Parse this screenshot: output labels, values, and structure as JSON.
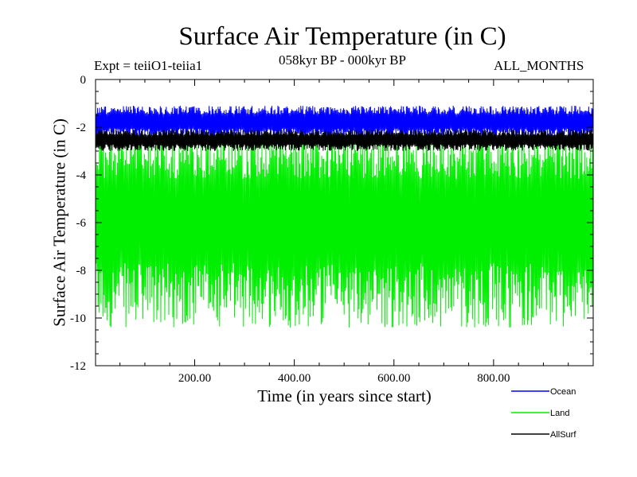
{
  "header": {
    "title": "Surface Air Temperature (in C)",
    "experiment": "Expt = teiiO1-teiia1",
    "period": "058kyr BP - 000kyr BP",
    "months": "ALL_MONTHS"
  },
  "chart_data": {
    "type": "line",
    "title": "Surface Air Temperature (in C)",
    "xlabel": "Time (in years since start)",
    "ylabel": "Surface Air Temperature (in C)",
    "xlim": [
      1,
      1000
    ],
    "ylim": [
      -12,
      0
    ],
    "xticks": [
      200,
      400,
      600,
      800
    ],
    "xtick_labels": [
      "200.00",
      "400.00",
      "600.00",
      "800.00"
    ],
    "yticks": [
      0,
      -2,
      -4,
      -6,
      -8,
      -10,
      -12
    ],
    "ytick_labels": [
      "0",
      "-2",
      "-4",
      "-6",
      "-8",
      "-10",
      "-12"
    ],
    "legend_position": "bottom-right, below plot",
    "grid": false,
    "series": [
      {
        "name": "Ocean",
        "color": "#0000ff",
        "mean": -1.7,
        "min": -2.5,
        "max": -1.1
      },
      {
        "name": "Land",
        "color": "#00ee00",
        "mean": -5.5,
        "min": -10.4,
        "max": -2.2
      },
      {
        "name": "AllSurf",
        "color": "#000000",
        "mean": -2.5,
        "min": -3.0,
        "max": -2.1
      }
    ]
  }
}
